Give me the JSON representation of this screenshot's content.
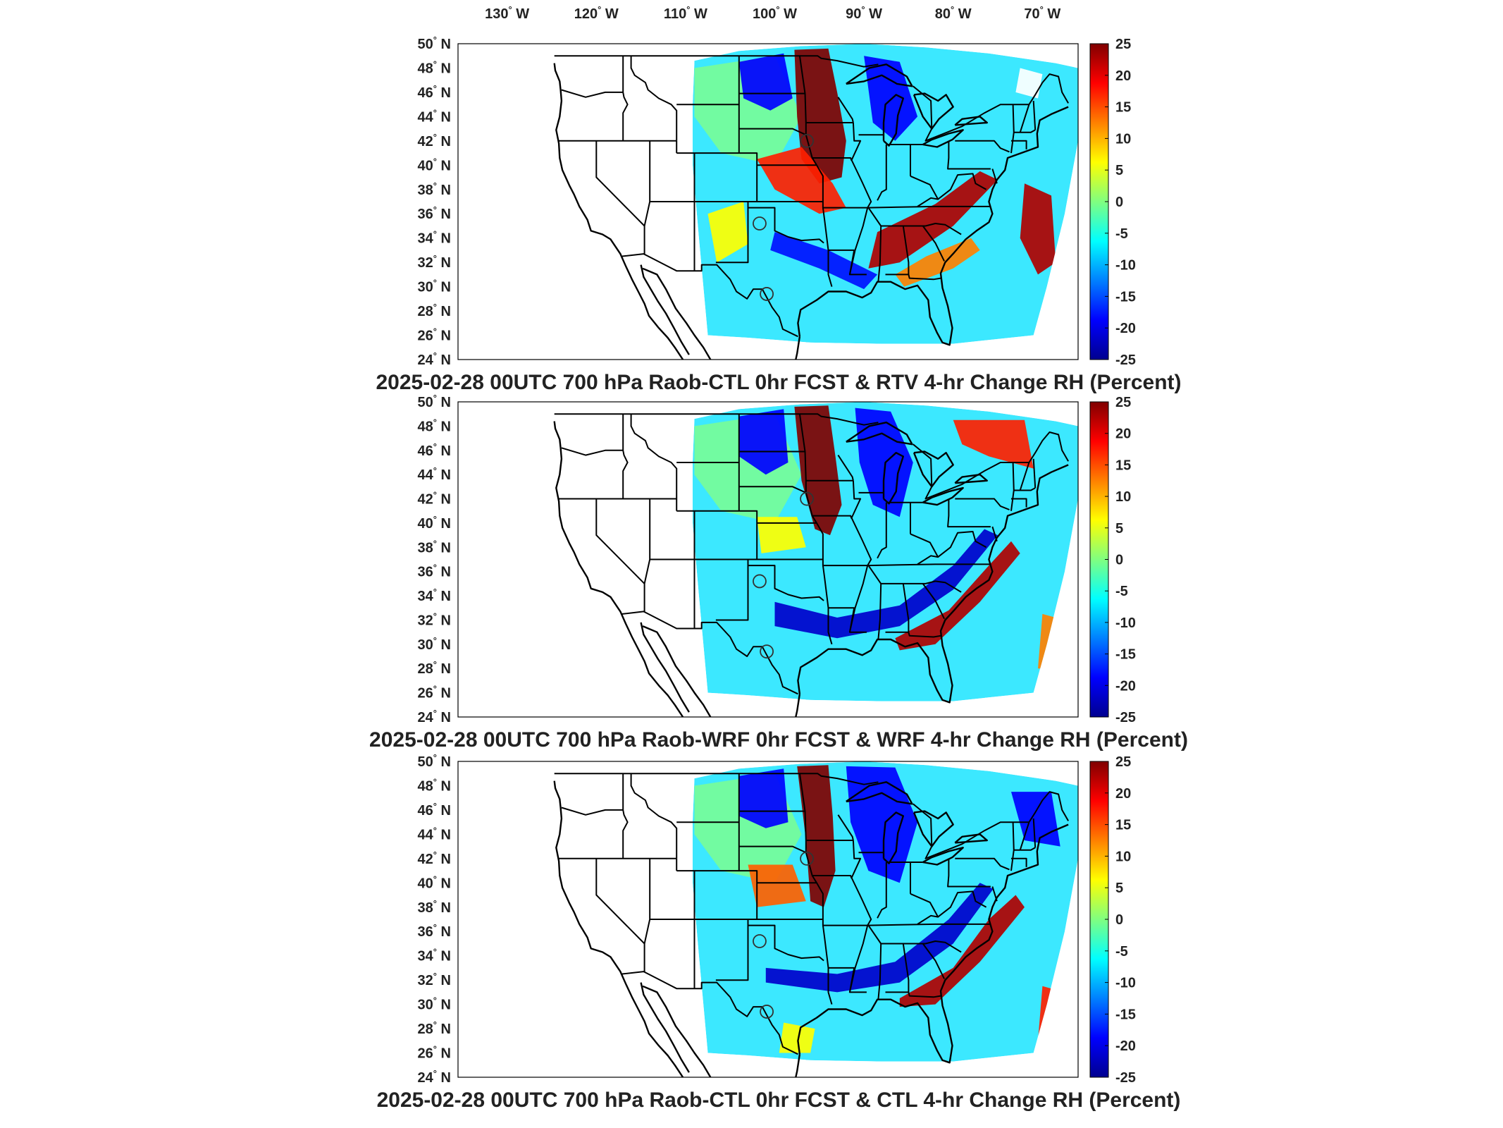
{
  "lon_ticks": [
    {
      "label": "130",
      "unit": "W",
      "lon": -130
    },
    {
      "label": "120",
      "unit": "W",
      "lon": -120
    },
    {
      "label": "110",
      "unit": "W",
      "lon": -110
    },
    {
      "label": "100",
      "unit": "W",
      "lon": -100
    },
    {
      "label": "90",
      "unit": "W",
      "lon": -90
    },
    {
      "label": "80",
      "unit": "W",
      "lon": -80
    },
    {
      "label": "70",
      "unit": "W",
      "lon": -70
    }
  ],
  "lat_ticks": [
    {
      "label": "50",
      "unit": "N",
      "lat": 50
    },
    {
      "label": "48",
      "unit": "N",
      "lat": 48
    },
    {
      "label": "46",
      "unit": "N",
      "lat": 46
    },
    {
      "label": "44",
      "unit": "N",
      "lat": 44
    },
    {
      "label": "42",
      "unit": "N",
      "lat": 42
    },
    {
      "label": "40",
      "unit": "N",
      "lat": 40
    },
    {
      "label": "38",
      "unit": "N",
      "lat": 38
    },
    {
      "label": "36",
      "unit": "N",
      "lat": 36
    },
    {
      "label": "34",
      "unit": "N",
      "lat": 34
    },
    {
      "label": "32",
      "unit": "N",
      "lat": 32
    },
    {
      "label": "30",
      "unit": "N",
      "lat": 30
    },
    {
      "label": "28",
      "unit": "N",
      "lat": 28
    },
    {
      "label": "26",
      "unit": "N",
      "lat": 26
    },
    {
      "label": "24",
      "unit": "N",
      "lat": 24
    }
  ],
  "colorbar": {
    "ticks": [
      "25",
      "20",
      "15",
      "10",
      "5",
      "0",
      "-5",
      "-10",
      "-15",
      "-20",
      "-25"
    ],
    "range": [
      -25,
      25
    ],
    "colors": [
      "#00008f",
      "#0000ff",
      "#0080ff",
      "#00ffff",
      "#80ff80",
      "#ffff00",
      "#ff8000",
      "#ff0000",
      "#800000"
    ]
  },
  "panels": [
    {
      "id": "rtv",
      "title": "2025-02-28 00UTC 700 hPa Raob-CTL 0hr FCST & RTV 4-hr Change RH (Percent)"
    },
    {
      "id": "wrf",
      "title": "2025-02-28 00UTC 700 hPa Raob-WRF 0hr FCST & WRF 4-hr Change RH (Percent)"
    },
    {
      "id": "ctl",
      "title": "2025-02-28 00UTC 700 hPa Raob-CTL 0hr FCST & CTL 4-hr Change RH (Percent)"
    }
  ],
  "stations": [
    {
      "lon": -96.4,
      "lat": 42.0
    },
    {
      "lon": -101.7,
      "lat": 35.2
    },
    {
      "lon": -100.9,
      "lat": 29.4
    }
  ]
}
